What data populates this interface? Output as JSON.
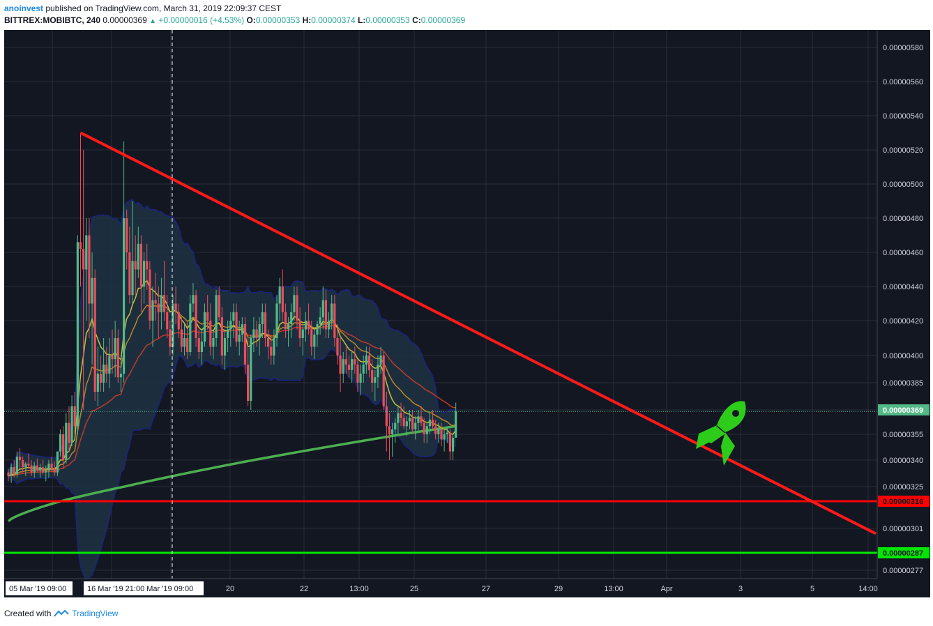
{
  "header": {
    "author": "anoinvest",
    "published_text": "published on TradingView.com, March 31, 2019 22:09:37 CEST",
    "symbol": "BITTREX:MOBIBTC, 240",
    "last": "0.00000369",
    "change": "+0.00000016 (+4.53%)",
    "o_label": "O:",
    "o_value": "0.00000353",
    "h_label": "H:",
    "h_value": "0.00000374",
    "l_label": "L:",
    "l_value": "0.00000353",
    "c_label": "C:",
    "c_value": "0.00000369"
  },
  "footer": {
    "created_with": "Created with",
    "brand": "TradingView"
  },
  "colors": {
    "background": "#131722",
    "up": "#53b987",
    "down": "#eb4d5c",
    "bollinger_fill": "#1f3243",
    "bollinger_line": "#1a237e",
    "ema_short": "#c7c03a",
    "ema_mid": "#b8862d",
    "ema_long": "#c0392b",
    "ma_200": "#4caf50",
    "trendline": "#ff1a1a",
    "support_red": "#ff0000",
    "support_green": "#00e600",
    "rocket": "#2ecc1a"
  },
  "chart_data": {
    "type": "candlestick",
    "y_axis_ticks": [
      "0.00000580",
      "0.00000560",
      "0.00000540",
      "0.00000520",
      "0.00000500",
      "0.00000480",
      "0.00000460",
      "0.00000440",
      "0.00000420",
      "0.00000400",
      "0.00000385",
      "0.00000369",
      "0.00000355",
      "0.00000340",
      "0.00000325",
      "0.00000316",
      "0.00000301",
      "0.00000287",
      "0.00000277"
    ],
    "y_axis_values": [
      5.8,
      5.6,
      5.4,
      5.2,
      5.0,
      4.8,
      4.6,
      4.4,
      4.2,
      4.0,
      3.85,
      3.7,
      3.55,
      3.4,
      3.25,
      3.16,
      3.01,
      2.87,
      2.77
    ],
    "y_unit": "BTC x 1e-6",
    "x_axis_labels": [
      "05 Mar '19  09:00",
      "16 Mar '19  21:00",
      "Mar '19  09:00",
      "20",
      "22",
      "13:00",
      "25",
      "27",
      "29",
      "13:00",
      "Apr",
      "3",
      "5",
      "14:00"
    ],
    "price_badges": [
      {
        "label": "0.00000369",
        "color": "#53b987"
      },
      {
        "label": "0.00000316",
        "color": "#ff0000"
      },
      {
        "label": "0.00000287",
        "color": "#00e600"
      }
    ],
    "horizontal_levels": [
      3.16,
      2.87
    ],
    "current_price": 3.69,
    "trendline": {
      "from": {
        "bar": 25,
        "price": 5.3
      },
      "to": {
        "bar": 227,
        "price": 2.98
      }
    },
    "candles": [
      [
        3.33,
        3.35,
        3.28,
        3.31
      ],
      [
        3.31,
        3.38,
        3.27,
        3.36
      ],
      [
        3.36,
        3.4,
        3.3,
        3.32
      ],
      [
        3.32,
        3.45,
        3.3,
        3.42
      ],
      [
        3.42,
        3.47,
        3.35,
        3.4
      ],
      [
        3.4,
        3.42,
        3.33,
        3.36
      ],
      [
        3.36,
        3.39,
        3.31,
        3.38
      ],
      [
        3.38,
        3.44,
        3.35,
        3.37
      ],
      [
        3.37,
        3.4,
        3.31,
        3.33
      ],
      [
        3.33,
        3.39,
        3.3,
        3.37
      ],
      [
        3.37,
        3.41,
        3.33,
        3.34
      ],
      [
        3.34,
        3.38,
        3.3,
        3.36
      ],
      [
        3.36,
        3.4,
        3.32,
        3.33
      ],
      [
        3.33,
        3.37,
        3.28,
        3.34
      ],
      [
        3.34,
        3.4,
        3.3,
        3.38
      ],
      [
        3.38,
        3.42,
        3.33,
        3.35
      ],
      [
        3.35,
        3.39,
        3.31,
        3.33
      ],
      [
        3.33,
        3.45,
        3.31,
        3.45
      ],
      [
        3.45,
        3.58,
        3.42,
        3.55
      ],
      [
        3.55,
        3.6,
        3.35,
        3.4
      ],
      [
        3.4,
        3.68,
        3.38,
        3.62
      ],
      [
        3.62,
        3.72,
        3.45,
        3.5
      ],
      [
        3.5,
        3.78,
        3.48,
        3.72
      ],
      [
        3.72,
        3.8,
        3.55,
        3.6
      ],
      [
        3.6,
        4.7,
        3.55,
        4.66
      ],
      [
        4.66,
        5.3,
        4.4,
        4.62
      ],
      [
        4.62,
        5.2,
        3.7,
        4.5
      ],
      [
        4.5,
        4.8,
        4.2,
        4.7
      ],
      [
        4.7,
        4.8,
        4.1,
        4.3
      ],
      [
        4.3,
        4.6,
        3.95,
        4.45
      ],
      [
        4.45,
        4.5,
        3.75,
        3.8
      ],
      [
        3.8,
        4.05,
        3.72,
        3.9
      ],
      [
        3.9,
        4.0,
        3.8,
        3.85
      ],
      [
        3.85,
        4.1,
        3.8,
        3.95
      ],
      [
        3.95,
        4.05,
        3.85,
        3.9
      ],
      [
        3.9,
        4.1,
        3.82,
        4.0
      ],
      [
        4.0,
        4.15,
        3.9,
        3.98
      ],
      [
        3.98,
        4.2,
        3.88,
        4.1
      ],
      [
        4.1,
        4.15,
        3.85,
        3.88
      ],
      [
        3.88,
        4.0,
        3.8,
        3.9
      ],
      [
        3.9,
        5.25,
        3.85,
        4.8
      ],
      [
        4.8,
        4.85,
        4.5,
        4.6
      ],
      [
        4.6,
        4.75,
        4.3,
        4.35
      ],
      [
        4.35,
        4.9,
        4.3,
        4.55
      ],
      [
        4.55,
        4.7,
        4.35,
        4.5
      ],
      [
        4.5,
        4.75,
        4.45,
        4.65
      ],
      [
        4.65,
        4.7,
        4.25,
        4.4
      ],
      [
        4.4,
        4.6,
        4.3,
        4.55
      ],
      [
        4.55,
        4.65,
        4.38,
        4.5
      ],
      [
        4.5,
        4.55,
        4.15,
        4.2
      ],
      [
        4.2,
        4.4,
        4.05,
        4.32
      ],
      [
        4.32,
        4.48,
        4.2,
        4.3
      ],
      [
        4.3,
        4.4,
        4.1,
        4.25
      ],
      [
        4.25,
        4.45,
        4.15,
        4.35
      ],
      [
        4.35,
        4.55,
        4.2,
        4.25
      ],
      [
        4.25,
        4.35,
        4.1,
        4.15
      ],
      [
        4.15,
        4.2,
        4.0,
        4.05
      ],
      [
        4.05,
        4.35,
        4.0,
        4.3
      ],
      [
        4.3,
        4.4,
        4.18,
        4.25
      ],
      [
        4.25,
        4.3,
        4.1,
        4.15
      ],
      [
        4.15,
        4.22,
        4.02,
        4.05
      ],
      [
        4.05,
        4.18,
        4.0,
        4.1
      ],
      [
        4.1,
        4.2,
        3.98,
        4.02
      ],
      [
        4.02,
        4.35,
        4.0,
        4.3
      ],
      [
        4.3,
        4.42,
        4.25,
        4.35
      ],
      [
        4.35,
        4.38,
        4.05,
        4.1
      ],
      [
        4.1,
        4.15,
        3.98,
        4.02
      ],
      [
        4.02,
        4.15,
        3.95,
        4.08
      ],
      [
        4.08,
        4.3,
        4.05,
        4.25
      ],
      [
        4.25,
        4.35,
        4.15,
        4.2
      ],
      [
        4.2,
        4.3,
        4.0,
        4.05
      ],
      [
        4.05,
        4.15,
        3.98,
        4.1
      ],
      [
        4.1,
        4.38,
        4.05,
        4.35
      ],
      [
        4.35,
        4.4,
        4.2,
        4.22
      ],
      [
        4.22,
        4.28,
        3.95,
        4.0
      ],
      [
        4.0,
        4.15,
        3.92,
        4.1
      ],
      [
        4.1,
        4.2,
        4.02,
        4.15
      ],
      [
        4.15,
        4.25,
        4.05,
        4.2
      ],
      [
        4.2,
        4.3,
        4.1,
        4.25
      ],
      [
        4.25,
        4.3,
        4.05,
        4.08
      ],
      [
        4.08,
        4.2,
        4.0,
        4.12
      ],
      [
        4.12,
        4.22,
        4.08,
        4.18
      ],
      [
        4.18,
        4.22,
        3.9,
        3.95
      ],
      [
        3.95,
        4.1,
        3.72,
        3.75
      ],
      [
        3.75,
        4.12,
        3.7,
        4.1
      ],
      [
        4.1,
        4.22,
        4.02,
        4.15
      ],
      [
        4.15,
        4.2,
        4.05,
        4.1
      ],
      [
        4.1,
        4.22,
        4.0,
        4.18
      ],
      [
        4.18,
        4.3,
        4.1,
        4.25
      ],
      [
        4.25,
        4.3,
        4.05,
        4.1
      ],
      [
        4.1,
        4.15,
        3.98,
        4.05
      ],
      [
        4.05,
        4.12,
        3.95,
        4.0
      ],
      [
        4.0,
        4.15,
        3.95,
        4.1
      ],
      [
        4.1,
        4.35,
        4.05,
        4.3
      ],
      [
        4.3,
        4.45,
        4.2,
        4.4
      ],
      [
        4.4,
        4.5,
        4.2,
        4.25
      ],
      [
        4.25,
        4.3,
        4.1,
        4.15
      ],
      [
        4.15,
        4.22,
        4.05,
        4.18
      ],
      [
        4.18,
        4.3,
        4.1,
        4.25
      ],
      [
        4.25,
        4.4,
        4.2,
        4.35
      ],
      [
        4.35,
        4.4,
        4.15,
        4.2
      ],
      [
        4.2,
        4.28,
        4.05,
        4.1
      ],
      [
        4.1,
        4.18,
        4.0,
        4.15
      ],
      [
        4.15,
        4.25,
        4.08,
        4.2
      ],
      [
        4.2,
        4.3,
        4.12,
        4.15
      ],
      [
        4.15,
        4.2,
        4.0,
        4.05
      ],
      [
        4.05,
        4.15,
        3.98,
        4.12
      ],
      [
        4.12,
        4.2,
        4.05,
        4.18
      ],
      [
        4.18,
        4.28,
        4.12,
        4.22
      ],
      [
        4.22,
        4.4,
        4.15,
        4.32
      ],
      [
        4.32,
        4.38,
        4.1,
        4.15
      ],
      [
        4.15,
        4.25,
        4.1,
        4.2
      ],
      [
        4.2,
        4.35,
        4.15,
        4.3
      ],
      [
        4.3,
        4.35,
        4.05,
        4.1
      ],
      [
        4.1,
        4.18,
        3.95,
        4.0
      ],
      [
        4.0,
        4.1,
        3.8,
        3.9
      ],
      [
        3.9,
        4.02,
        3.85,
        3.98
      ],
      [
        3.98,
        4.05,
        3.9,
        3.95
      ],
      [
        3.95,
        4.0,
        3.88,
        3.92
      ],
      [
        3.92,
        4.02,
        3.85,
        3.98
      ],
      [
        3.98,
        4.05,
        3.9,
        3.95
      ],
      [
        3.95,
        3.98,
        3.8,
        3.85
      ],
      [
        3.85,
        3.95,
        3.78,
        3.9
      ],
      [
        3.9,
        4.0,
        3.85,
        3.95
      ],
      [
        3.95,
        4.05,
        3.9,
        4.0
      ],
      [
        4.0,
        4.05,
        3.88,
        3.92
      ],
      [
        3.92,
        3.98,
        3.8,
        3.85
      ],
      [
        3.85,
        3.92,
        3.75,
        3.88
      ],
      [
        3.88,
        4.0,
        3.82,
        3.95
      ],
      [
        3.95,
        4.05,
        3.9,
        4.0
      ],
      [
        4.0,
        4.02,
        3.7,
        3.72
      ],
      [
        3.72,
        3.8,
        3.45,
        3.6
      ],
      [
        3.6,
        3.68,
        3.4,
        3.55
      ],
      [
        3.55,
        3.62,
        3.42,
        3.58
      ],
      [
        3.58,
        3.65,
        3.5,
        3.62
      ],
      [
        3.62,
        3.72,
        3.55,
        3.68
      ],
      [
        3.68,
        3.74,
        3.6,
        3.65
      ],
      [
        3.65,
        3.72,
        3.58,
        3.6
      ],
      [
        3.6,
        3.66,
        3.54,
        3.63
      ],
      [
        3.63,
        3.7,
        3.58,
        3.65
      ],
      [
        3.65,
        3.7,
        3.55,
        3.58
      ],
      [
        3.58,
        3.66,
        3.52,
        3.62
      ],
      [
        3.62,
        3.7,
        3.57,
        3.66
      ],
      [
        3.66,
        3.72,
        3.6,
        3.62
      ],
      [
        3.62,
        3.65,
        3.5,
        3.55
      ],
      [
        3.55,
        3.62,
        3.5,
        3.6
      ],
      [
        3.6,
        3.68,
        3.55,
        3.64
      ],
      [
        3.64,
        3.7,
        3.58,
        3.6
      ],
      [
        3.6,
        3.64,
        3.52,
        3.55
      ],
      [
        3.55,
        3.62,
        3.5,
        3.58
      ],
      [
        3.58,
        3.62,
        3.48,
        3.52
      ],
      [
        3.52,
        3.58,
        3.45,
        3.55
      ],
      [
        3.55,
        3.6,
        3.5,
        3.56
      ],
      [
        3.56,
        3.58,
        3.4,
        3.45
      ],
      [
        3.45,
        3.55,
        3.4,
        3.53
      ],
      [
        3.53,
        3.74,
        3.53,
        3.69
      ]
    ],
    "indicators": [
      "Bollinger Bands",
      "EMA short",
      "EMA mid",
      "EMA long",
      "MA 200"
    ]
  }
}
